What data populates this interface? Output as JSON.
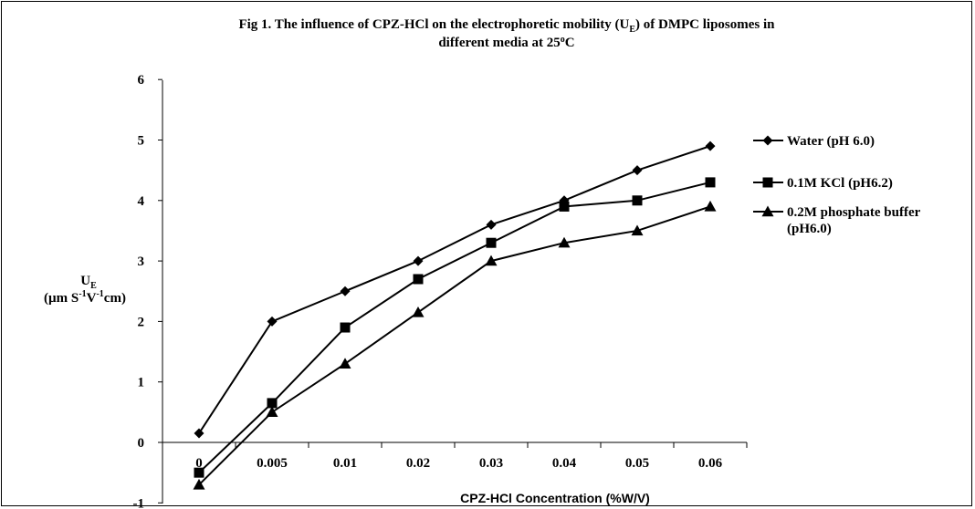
{
  "chart_data": {
    "type": "line",
    "title": {
      "line1_prefix": "Fig 1. The influence of CPZ-HCl on the electrophoretic mobility (U",
      "line1_sub": "E",
      "line1_suffix": ") of DMPC liposomes in",
      "line2_prefix": "different media at 25",
      "line2_sup": "o",
      "line2_suffix": "C"
    },
    "xlabel": "CPZ-HCl Concentration (%W/V)",
    "ylabel": {
      "line1_main": "U",
      "line1_sub": "E",
      "line2_a": "(µm S",
      "line2_sup1": "-1",
      "line2_b": "V",
      "line2_sup2": "-1",
      "line2_c": "cm)"
    },
    "categories": [
      "0",
      "0.005",
      "0.01",
      "0.02",
      "0.03",
      "0.04",
      "0.05",
      "0.06"
    ],
    "yticks": [
      "-1",
      "0",
      "1",
      "2",
      "3",
      "4",
      "5",
      "6"
    ],
    "ylim": [
      -1,
      6
    ],
    "grid": false,
    "legend_position": "right",
    "series": [
      {
        "name": "Water (pH 6.0)",
        "marker": "diamond",
        "values": [
          0.15,
          2.0,
          2.5,
          3.0,
          3.6,
          4.0,
          4.5,
          4.9
        ]
      },
      {
        "name": "0.1M KCl (pH6.2)",
        "marker": "square",
        "values": [
          -0.5,
          0.65,
          1.9,
          2.7,
          3.3,
          3.9,
          4.0,
          4.3
        ]
      },
      {
        "name": "0.2M phosphate buffer",
        "name_line2": "(pH6.0)",
        "marker": "triangle",
        "values": [
          -0.7,
          0.5,
          1.3,
          2.15,
          3.0,
          3.3,
          3.5,
          3.9
        ]
      }
    ],
    "colors": {
      "line": "#000000",
      "text": "#000000"
    }
  }
}
